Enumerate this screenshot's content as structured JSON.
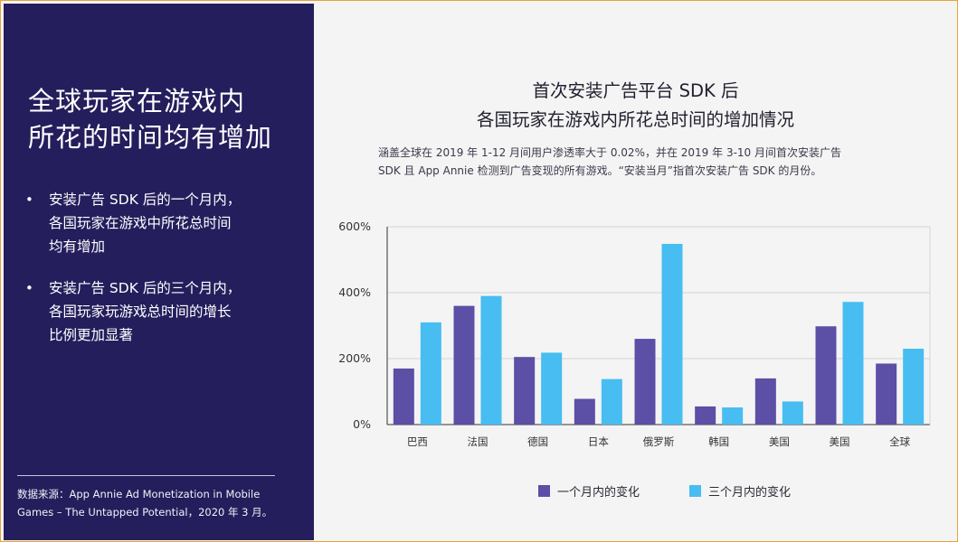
{
  "slide": {
    "headline": [
      "全球玩家在游戏内",
      "所花的时间均有增加"
    ],
    "bullets": [
      {
        "lines": [
          "安装广告 SDK 后的一个月内，",
          "各国玩家在游戏中所花总时间",
          "均有增加"
        ]
      },
      {
        "lines": [
          "安装广告 SDK 后的三个月内，",
          "各国玩家玩游戏总时间的增长",
          "比例更加显著"
        ]
      }
    ],
    "bullet_symbol": "•",
    "source": [
      "数据来源：App Annie Ad Monetization in Mobile",
      "Games – The Untapped Potential，2020 年 3 月。"
    ]
  },
  "colors": {
    "panel": "#241e5c",
    "series_1": "#5b4fa6",
    "series_2": "#47bdf2",
    "grid": "#d4d4d4",
    "axis": "#333333"
  },
  "chart_data": {
    "type": "bar",
    "title": [
      "首次安装广告平台 SDK 后",
      "各国玩家在游戏内所花总时间的增加情况"
    ],
    "subtitle": [
      "涵盖全球在 2019 年 1-12 月间用户渗透率大于 0.02%，并在 2019 年 3-10 月间首次安装广告",
      "SDK 且 App Annie 检测到广告变现的所有游戏。“安装当月”指首次安装广告 SDK 的月份。"
    ],
    "categories": [
      "巴西",
      "法国",
      "德国",
      "日本",
      "俄罗斯",
      "韩国",
      "美国",
      "美国",
      "全球"
    ],
    "series": [
      {
        "name": "一个月内的变化",
        "values": [
          170,
          360,
          205,
          78,
          260,
          55,
          140,
          298,
          185
        ]
      },
      {
        "name": "三个月内的变化",
        "values": [
          310,
          390,
          218,
          138,
          548,
          52,
          70,
          372,
          230
        ]
      }
    ],
    "ylim": [
      0,
      600
    ],
    "yticks": [
      0,
      200,
      400,
      600
    ],
    "ytick_labels": [
      "0%",
      "200%",
      "400%",
      "600%"
    ],
    "grid": true,
    "legend": "bottom"
  }
}
